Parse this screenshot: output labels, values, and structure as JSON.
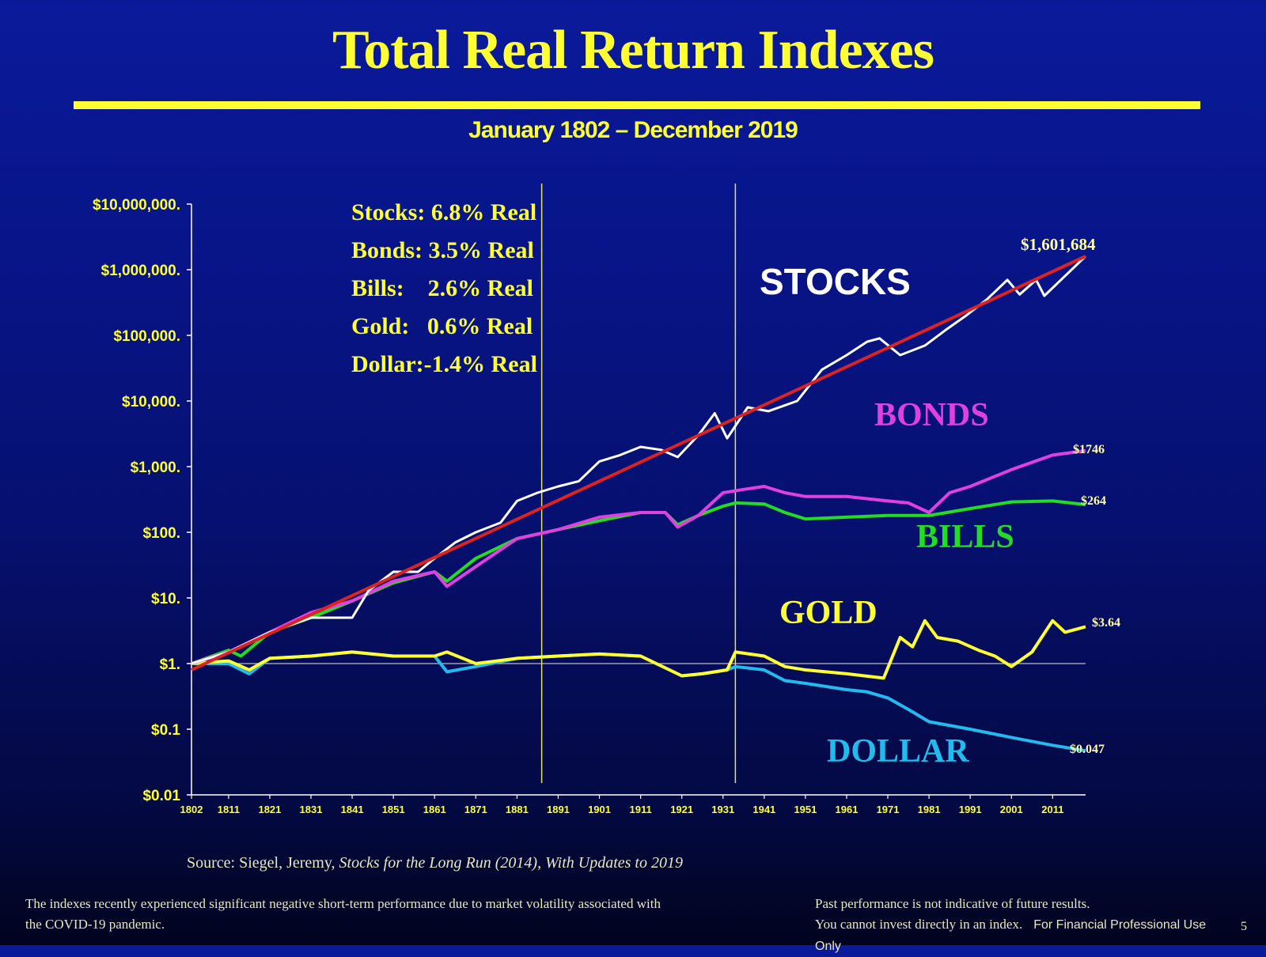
{
  "slide": {
    "title": "Total Real Return Indexes",
    "subtitle": "January 1802 – December 2019",
    "source_prefix": "Source: Siegel, Jeremy, ",
    "source_italic": "Stocks for the Long Run (2014), With Updates to 2019",
    "footnote_left": "The indexes recently experienced significant negative short-term performance due to market volatility associated with the COVID-19 pandemic.",
    "footnote_right_1": "Past performance is not indicative of future results.",
    "footnote_right_2": "You cannot invest directly in an index.",
    "footnote_right_3": "For Financial Professional Use Only",
    "page_number": "5"
  },
  "colors": {
    "background": "#07128a",
    "title": "#ffff33",
    "stocks": "#ffffff",
    "bonds": "#e040e0",
    "bills": "#22dd22",
    "gold": "#ffff33",
    "dollar": "#22bbee",
    "trend": "#dd2222",
    "axis": "#ffffff",
    "vline": "#e0e070"
  },
  "chart_data": {
    "type": "line",
    "title": "",
    "xlabel": "",
    "ylabel": "",
    "y_scale": "log",
    "ylim": [
      0.01,
      10000000
    ],
    "xlim": [
      1802,
      2019
    ],
    "y_tick_values": [
      0.01,
      0.1,
      1,
      10,
      100,
      1000,
      10000,
      100000,
      1000000,
      10000000
    ],
    "y_tick_labels": [
      "$0.01",
      "$0.1",
      "$1.",
      "$10.",
      "$100.",
      "$1,000.",
      "$10,000.",
      "$100,000.",
      "$1,000,000.",
      "$10,000,000."
    ],
    "x_ticks": [
      1802,
      1811,
      1821,
      1831,
      1841,
      1851,
      1861,
      1871,
      1881,
      1891,
      1901,
      1911,
      1921,
      1931,
      1941,
      1951,
      1961,
      1971,
      1981,
      1991,
      2001,
      2011
    ],
    "vertical_lines": [
      1887,
      1934
    ],
    "grid": false,
    "legend": "none",
    "annotation_box": [
      "Stocks: 6.8% Real",
      "Bonds: 3.5% Real",
      "Bills:    2.6% Real",
      "Gold:   0.6% Real",
      "Dollar:-1.4% Real"
    ],
    "series": [
      {
        "name": "STOCKS",
        "end_label": "$1,601,684",
        "x": [
          1802,
          1811,
          1821,
          1831,
          1836,
          1841,
          1845,
          1851,
          1857,
          1861,
          1866,
          1871,
          1877,
          1881,
          1886,
          1891,
          1896,
          1901,
          1906,
          1911,
          1916,
          1920,
          1925,
          1929,
          1932,
          1937,
          1942,
          1949,
          1955,
          1961,
          1966,
          1969,
          1974,
          1980,
          1985,
          1990,
          1995,
          2000,
          2003,
          2007,
          2009,
          2013,
          2019
        ],
        "y": [
          1,
          1.5,
          3,
          5,
          5,
          5,
          13,
          25,
          25,
          40,
          70,
          100,
          140,
          300,
          400,
          500,
          600,
          1200,
          1500,
          2000,
          1800,
          1400,
          3000,
          6500,
          2700,
          8000,
          7000,
          10000,
          30000,
          50000,
          80000,
          90000,
          50000,
          70000,
          120000,
          200000,
          350000,
          700000,
          420000,
          700000,
          400000,
          700000,
          1601684
        ]
      },
      {
        "name": "BONDS",
        "end_label": "$1746",
        "x": [
          1802,
          1811,
          1821,
          1831,
          1841,
          1851,
          1861,
          1864,
          1871,
          1881,
          1891,
          1901,
          1911,
          1917,
          1920,
          1925,
          1931,
          1936,
          1941,
          1946,
          1951,
          1961,
          1971,
          1976,
          1981,
          1986,
          1991,
          2001,
          2011,
          2019
        ],
        "y": [
          1,
          1.5,
          3,
          6,
          9,
          18,
          25,
          15,
          30,
          80,
          110,
          170,
          200,
          200,
          120,
          180,
          400,
          450,
          500,
          400,
          350,
          350,
          300,
          280,
          200,
          400,
          500,
          900,
          1500,
          1746
        ]
      },
      {
        "name": "BILLS",
        "end_label": "$264",
        "x": [
          1802,
          1811,
          1814,
          1821,
          1831,
          1841,
          1851,
          1861,
          1864,
          1871,
          1881,
          1891,
          1901,
          1911,
          1917,
          1920,
          1925,
          1931,
          1934,
          1941,
          1946,
          1951,
          1961,
          1971,
          1981,
          1991,
          2001,
          2011,
          2019
        ],
        "y": [
          1,
          1.6,
          1.3,
          3,
          5,
          9,
          17,
          25,
          18,
          40,
          80,
          110,
          150,
          200,
          200,
          130,
          180,
          250,
          280,
          270,
          200,
          160,
          170,
          180,
          180,
          230,
          290,
          300,
          264
        ]
      },
      {
        "name": "GOLD",
        "end_label": "$3.64",
        "x": [
          1802,
          1811,
          1816,
          1821,
          1831,
          1841,
          1851,
          1861,
          1864,
          1871,
          1881,
          1891,
          1901,
          1911,
          1918,
          1921,
          1926,
          1932,
          1934,
          1941,
          1946,
          1951,
          1961,
          1970,
          1974,
          1977,
          1980,
          1983,
          1988,
          1993,
          1997,
          2001,
          2006,
          2011,
          2014,
          2019
        ],
        "y": [
          1,
          1.1,
          0.8,
          1.2,
          1.3,
          1.5,
          1.3,
          1.3,
          1.5,
          1.0,
          1.2,
          1.3,
          1.4,
          1.3,
          0.8,
          0.65,
          0.7,
          0.8,
          1.5,
          1.3,
          0.9,
          0.8,
          0.7,
          0.6,
          2.5,
          1.8,
          4.5,
          2.5,
          2.2,
          1.6,
          1.3,
          0.9,
          1.5,
          4.5,
          3.0,
          3.64
        ]
      },
      {
        "name": "DOLLAR",
        "end_label": "$0.047",
        "x": [
          1802,
          1811,
          1816,
          1821,
          1831,
          1841,
          1851,
          1861,
          1864,
          1871,
          1881,
          1891,
          1901,
          1911,
          1918,
          1921,
          1926,
          1932,
          1934,
          1941,
          1946,
          1951,
          1961,
          1966,
          1971,
          1976,
          1981,
          1991,
          2001,
          2011,
          2019
        ],
        "y": [
          1,
          1.0,
          0.7,
          1.2,
          1.3,
          1.5,
          1.3,
          1.3,
          0.75,
          0.9,
          1.2,
          1.3,
          1.4,
          1.3,
          0.8,
          0.65,
          0.7,
          0.8,
          0.9,
          0.8,
          0.55,
          0.5,
          0.4,
          0.37,
          0.3,
          0.2,
          0.13,
          0.1,
          0.075,
          0.057,
          0.047
        ]
      },
      {
        "name": "",
        "x": [
          1802,
          2019
        ],
        "y": [
          0.8,
          1601684
        ]
      }
    ]
  }
}
